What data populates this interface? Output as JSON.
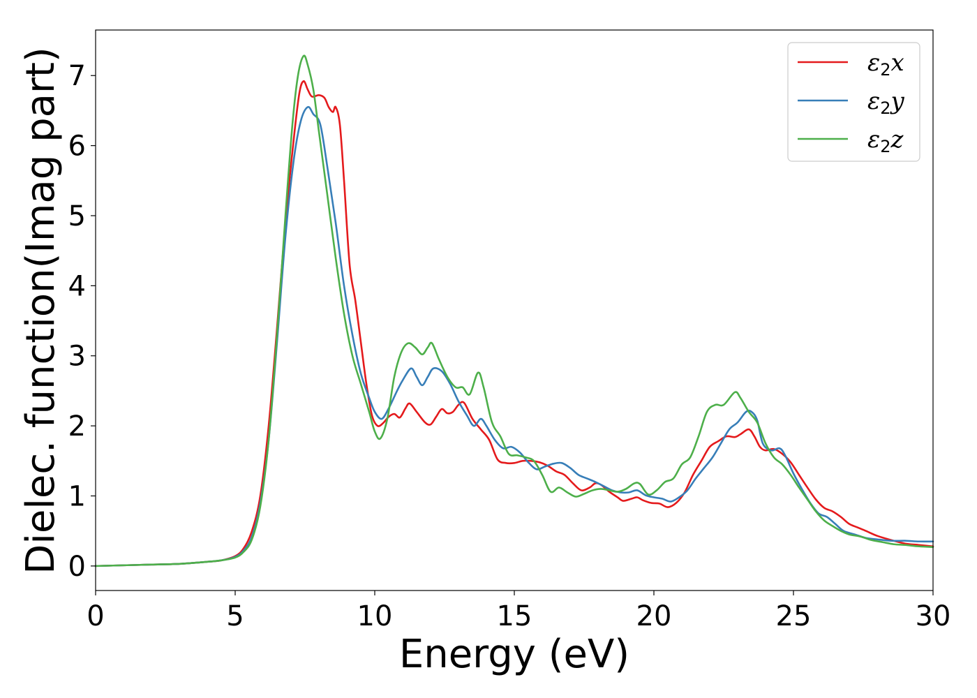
{
  "chart_data": {
    "type": "line",
    "title": "",
    "xlabel": "Energy (eV)",
    "ylabel": "Dielec. function(Imag part)",
    "xlim": [
      0,
      30
    ],
    "ylim": [
      -0.35,
      7.65
    ],
    "xticks": [
      0,
      5,
      10,
      15,
      20,
      25,
      30
    ],
    "yticks": [
      0,
      1,
      2,
      3,
      4,
      5,
      6,
      7
    ],
    "grid": false,
    "legend_position": "top-right",
    "colors": {
      "x": "#e41a1c",
      "y": "#377eb8",
      "z": "#4daf4a"
    },
    "series": [
      {
        "key": "x",
        "name": "ε2x",
        "name_symbol": "ε",
        "name_subscript": "2",
        "name_suffix": "x",
        "color": "#e41a1c",
        "points": [
          [
            0,
            0
          ],
          [
            1,
            0.01
          ],
          [
            2,
            0.02
          ],
          [
            3,
            0.03
          ],
          [
            4,
            0.06
          ],
          [
            4.5,
            0.08
          ],
          [
            5,
            0.14
          ],
          [
            5.3,
            0.25
          ],
          [
            5.6,
            0.5
          ],
          [
            5.9,
            1.0
          ],
          [
            6.2,
            2.0
          ],
          [
            6.5,
            3.4
          ],
          [
            6.8,
            4.9
          ],
          [
            7.1,
            6.1
          ],
          [
            7.3,
            6.75
          ],
          [
            7.45,
            6.92
          ],
          [
            7.6,
            6.8
          ],
          [
            7.75,
            6.7
          ],
          [
            8.0,
            6.72
          ],
          [
            8.2,
            6.68
          ],
          [
            8.35,
            6.55
          ],
          [
            8.5,
            6.48
          ],
          [
            8.6,
            6.55
          ],
          [
            8.75,
            6.3
          ],
          [
            8.9,
            5.5
          ],
          [
            9.1,
            4.3
          ],
          [
            9.3,
            3.8
          ],
          [
            9.5,
            3.2
          ],
          [
            9.7,
            2.6
          ],
          [
            9.9,
            2.15
          ],
          [
            10.1,
            2.0
          ],
          [
            10.3,
            2.04
          ],
          [
            10.5,
            2.13
          ],
          [
            10.7,
            2.17
          ],
          [
            10.9,
            2.12
          ],
          [
            11.1,
            2.25
          ],
          [
            11.25,
            2.32
          ],
          [
            11.5,
            2.2
          ],
          [
            11.8,
            2.05
          ],
          [
            12.0,
            2.02
          ],
          [
            12.2,
            2.13
          ],
          [
            12.4,
            2.24
          ],
          [
            12.6,
            2.18
          ],
          [
            12.8,
            2.2
          ],
          [
            13.0,
            2.3
          ],
          [
            13.2,
            2.33
          ],
          [
            13.5,
            2.1
          ],
          [
            13.8,
            1.95
          ],
          [
            14.1,
            1.8
          ],
          [
            14.4,
            1.52
          ],
          [
            14.7,
            1.47
          ],
          [
            15.0,
            1.47
          ],
          [
            15.3,
            1.5
          ],
          [
            15.6,
            1.5
          ],
          [
            15.9,
            1.48
          ],
          [
            16.2,
            1.43
          ],
          [
            16.5,
            1.35
          ],
          [
            16.8,
            1.3
          ],
          [
            17.1,
            1.18
          ],
          [
            17.4,
            1.08
          ],
          [
            17.7,
            1.12
          ],
          [
            17.9,
            1.18
          ],
          [
            18.1,
            1.16
          ],
          [
            18.4,
            1.06
          ],
          [
            18.7,
            0.98
          ],
          [
            18.9,
            0.93
          ],
          [
            19.2,
            0.96
          ],
          [
            19.4,
            0.98
          ],
          [
            19.6,
            0.94
          ],
          [
            19.9,
            0.9
          ],
          [
            20.2,
            0.89
          ],
          [
            20.5,
            0.84
          ],
          [
            20.8,
            0.9
          ],
          [
            21.1,
            1.05
          ],
          [
            21.4,
            1.3
          ],
          [
            21.7,
            1.5
          ],
          [
            22.0,
            1.7
          ],
          [
            22.3,
            1.78
          ],
          [
            22.6,
            1.85
          ],
          [
            22.9,
            1.84
          ],
          [
            23.1,
            1.88
          ],
          [
            23.4,
            1.95
          ],
          [
            23.6,
            1.85
          ],
          [
            23.8,
            1.7
          ],
          [
            24.0,
            1.65
          ],
          [
            24.3,
            1.67
          ],
          [
            24.6,
            1.6
          ],
          [
            24.9,
            1.48
          ],
          [
            25.2,
            1.3
          ],
          [
            25.5,
            1.12
          ],
          [
            25.8,
            0.95
          ],
          [
            26.1,
            0.83
          ],
          [
            26.4,
            0.78
          ],
          [
            26.7,
            0.7
          ],
          [
            27.0,
            0.6
          ],
          [
            27.3,
            0.55
          ],
          [
            27.6,
            0.5
          ],
          [
            28.0,
            0.43
          ],
          [
            28.5,
            0.37
          ],
          [
            29.0,
            0.32
          ],
          [
            29.5,
            0.3
          ],
          [
            30.0,
            0.28
          ]
        ]
      },
      {
        "key": "y",
        "name": "ε2y",
        "name_symbol": "ε",
        "name_subscript": "2",
        "name_suffix": "y",
        "color": "#377eb8",
        "points": [
          [
            0,
            0
          ],
          [
            1,
            0.01
          ],
          [
            2,
            0.02
          ],
          [
            3,
            0.03
          ],
          [
            4,
            0.06
          ],
          [
            4.5,
            0.08
          ],
          [
            5,
            0.13
          ],
          [
            5.3,
            0.22
          ],
          [
            5.6,
            0.42
          ],
          [
            5.9,
            0.9
          ],
          [
            6.2,
            1.8
          ],
          [
            6.5,
            3.2
          ],
          [
            6.8,
            4.7
          ],
          [
            7.1,
            5.8
          ],
          [
            7.35,
            6.35
          ],
          [
            7.6,
            6.55
          ],
          [
            7.8,
            6.45
          ],
          [
            8.05,
            6.3
          ],
          [
            8.3,
            5.7
          ],
          [
            8.6,
            4.9
          ],
          [
            8.9,
            4.0
          ],
          [
            9.2,
            3.3
          ],
          [
            9.5,
            2.75
          ],
          [
            9.8,
            2.4
          ],
          [
            10.0,
            2.2
          ],
          [
            10.25,
            2.1
          ],
          [
            10.5,
            2.25
          ],
          [
            10.8,
            2.5
          ],
          [
            11.0,
            2.65
          ],
          [
            11.3,
            2.82
          ],
          [
            11.5,
            2.7
          ],
          [
            11.7,
            2.58
          ],
          [
            11.9,
            2.7
          ],
          [
            12.1,
            2.82
          ],
          [
            12.4,
            2.78
          ],
          [
            12.7,
            2.6
          ],
          [
            13.0,
            2.35
          ],
          [
            13.3,
            2.15
          ],
          [
            13.55,
            2.0
          ],
          [
            13.8,
            2.1
          ],
          [
            14.0,
            2.0
          ],
          [
            14.3,
            1.8
          ],
          [
            14.6,
            1.68
          ],
          [
            14.9,
            1.7
          ],
          [
            15.2,
            1.62
          ],
          [
            15.5,
            1.48
          ],
          [
            15.8,
            1.38
          ],
          [
            16.1,
            1.42
          ],
          [
            16.4,
            1.46
          ],
          [
            16.7,
            1.47
          ],
          [
            17.0,
            1.4
          ],
          [
            17.3,
            1.3
          ],
          [
            17.6,
            1.25
          ],
          [
            17.9,
            1.2
          ],
          [
            18.2,
            1.14
          ],
          [
            18.5,
            1.08
          ],
          [
            18.8,
            1.05
          ],
          [
            19.1,
            1.05
          ],
          [
            19.4,
            1.08
          ],
          [
            19.7,
            1.01
          ],
          [
            20.0,
            0.98
          ],
          [
            20.3,
            0.96
          ],
          [
            20.6,
            0.92
          ],
          [
            20.9,
            0.98
          ],
          [
            21.2,
            1.08
          ],
          [
            21.5,
            1.25
          ],
          [
            21.8,
            1.4
          ],
          [
            22.1,
            1.55
          ],
          [
            22.4,
            1.75
          ],
          [
            22.7,
            1.95
          ],
          [
            23.0,
            2.05
          ],
          [
            23.3,
            2.2
          ],
          [
            23.5,
            2.2
          ],
          [
            23.7,
            2.08
          ],
          [
            23.9,
            1.75
          ],
          [
            24.2,
            1.65
          ],
          [
            24.5,
            1.68
          ],
          [
            24.7,
            1.58
          ],
          [
            25.0,
            1.32
          ],
          [
            25.3,
            1.1
          ],
          [
            25.6,
            0.9
          ],
          [
            25.9,
            0.75
          ],
          [
            26.2,
            0.7
          ],
          [
            26.5,
            0.6
          ],
          [
            26.8,
            0.5
          ],
          [
            27.2,
            0.45
          ],
          [
            27.6,
            0.4
          ],
          [
            28.0,
            0.38
          ],
          [
            28.5,
            0.36
          ],
          [
            29.0,
            0.36
          ],
          [
            29.5,
            0.35
          ],
          [
            30.0,
            0.35
          ]
        ]
      },
      {
        "key": "z",
        "name": "ε2z",
        "name_symbol": "ε",
        "name_subscript": "2",
        "name_suffix": "z",
        "color": "#4daf4a",
        "points": [
          [
            0,
            0
          ],
          [
            1,
            0.01
          ],
          [
            2,
            0.02
          ],
          [
            3,
            0.03
          ],
          [
            4,
            0.06
          ],
          [
            4.5,
            0.08
          ],
          [
            5,
            0.12
          ],
          [
            5.3,
            0.2
          ],
          [
            5.6,
            0.38
          ],
          [
            5.9,
            0.85
          ],
          [
            6.2,
            1.8
          ],
          [
            6.5,
            3.3
          ],
          [
            6.8,
            5.0
          ],
          [
            7.05,
            6.3
          ],
          [
            7.25,
            7.0
          ],
          [
            7.45,
            7.28
          ],
          [
            7.6,
            7.15
          ],
          [
            7.8,
            6.8
          ],
          [
            8.0,
            6.2
          ],
          [
            8.3,
            5.3
          ],
          [
            8.6,
            4.4
          ],
          [
            8.9,
            3.6
          ],
          [
            9.2,
            3.0
          ],
          [
            9.5,
            2.6
          ],
          [
            9.8,
            2.2
          ],
          [
            10.0,
            1.92
          ],
          [
            10.2,
            1.82
          ],
          [
            10.45,
            2.1
          ],
          [
            10.7,
            2.7
          ],
          [
            10.95,
            3.05
          ],
          [
            11.2,
            3.18
          ],
          [
            11.45,
            3.12
          ],
          [
            11.7,
            3.02
          ],
          [
            11.9,
            3.12
          ],
          [
            12.05,
            3.18
          ],
          [
            12.3,
            2.95
          ],
          [
            12.6,
            2.7
          ],
          [
            12.9,
            2.55
          ],
          [
            13.15,
            2.55
          ],
          [
            13.4,
            2.45
          ],
          [
            13.7,
            2.76
          ],
          [
            13.9,
            2.55
          ],
          [
            14.2,
            2.05
          ],
          [
            14.5,
            1.85
          ],
          [
            14.8,
            1.6
          ],
          [
            15.1,
            1.58
          ],
          [
            15.4,
            1.55
          ],
          [
            15.7,
            1.5
          ],
          [
            16.0,
            1.3
          ],
          [
            16.3,
            1.06
          ],
          [
            16.6,
            1.12
          ],
          [
            16.9,
            1.05
          ],
          [
            17.2,
            0.99
          ],
          [
            17.5,
            1.03
          ],
          [
            17.8,
            1.08
          ],
          [
            18.1,
            1.1
          ],
          [
            18.4,
            1.08
          ],
          [
            18.7,
            1.06
          ],
          [
            19.0,
            1.1
          ],
          [
            19.3,
            1.18
          ],
          [
            19.5,
            1.17
          ],
          [
            19.8,
            1.02
          ],
          [
            20.1,
            1.08
          ],
          [
            20.4,
            1.2
          ],
          [
            20.7,
            1.25
          ],
          [
            21.0,
            1.45
          ],
          [
            21.3,
            1.55
          ],
          [
            21.6,
            1.85
          ],
          [
            21.9,
            2.2
          ],
          [
            22.2,
            2.3
          ],
          [
            22.5,
            2.3
          ],
          [
            22.9,
            2.48
          ],
          [
            23.1,
            2.4
          ],
          [
            23.4,
            2.2
          ],
          [
            23.7,
            2.05
          ],
          [
            24.0,
            1.75
          ],
          [
            24.3,
            1.55
          ],
          [
            24.6,
            1.45
          ],
          [
            24.9,
            1.3
          ],
          [
            25.2,
            1.12
          ],
          [
            25.5,
            0.95
          ],
          [
            25.8,
            0.78
          ],
          [
            26.1,
            0.65
          ],
          [
            26.4,
            0.57
          ],
          [
            26.7,
            0.5
          ],
          [
            27.0,
            0.45
          ],
          [
            27.4,
            0.42
          ],
          [
            27.8,
            0.37
          ],
          [
            28.2,
            0.34
          ],
          [
            28.6,
            0.31
          ],
          [
            29.0,
            0.3
          ],
          [
            29.5,
            0.28
          ],
          [
            30.0,
            0.27
          ]
        ]
      }
    ]
  }
}
